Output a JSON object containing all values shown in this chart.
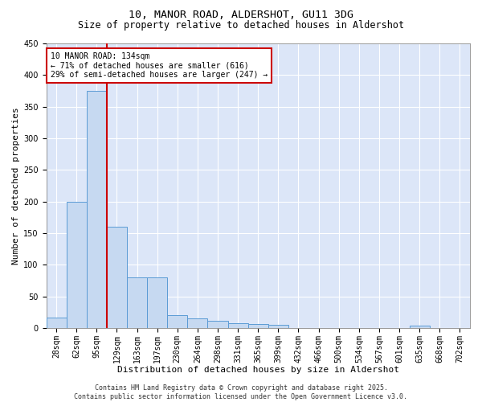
{
  "title_line1": "10, MANOR ROAD, ALDERSHOT, GU11 3DG",
  "title_line2": "Size of property relative to detached houses in Aldershot",
  "xlabel": "Distribution of detached houses by size in Aldershot",
  "ylabel": "Number of detached properties",
  "categories": [
    "28sqm",
    "62sqm",
    "95sqm",
    "129sqm",
    "163sqm",
    "197sqm",
    "230sqm",
    "264sqm",
    "298sqm",
    "331sqm",
    "365sqm",
    "399sqm",
    "432sqm",
    "466sqm",
    "500sqm",
    "534sqm",
    "567sqm",
    "601sqm",
    "635sqm",
    "668sqm",
    "702sqm"
  ],
  "values": [
    17,
    200,
    375,
    160,
    80,
    80,
    20,
    15,
    12,
    7,
    6,
    5,
    0,
    0,
    0,
    0,
    0,
    0,
    4,
    0,
    0
  ],
  "bar_color": "#c6d9f1",
  "bar_edge_color": "#5b9bd5",
  "red_line_index": 3,
  "annotation_text": "10 MANOR ROAD: 134sqm\n← 71% of detached houses are smaller (616)\n29% of semi-detached houses are larger (247) →",
  "annotation_box_color": "white",
  "annotation_box_edge_color": "#cc0000",
  "red_line_color": "#cc0000",
  "ylim": [
    0,
    450
  ],
  "yticks": [
    0,
    50,
    100,
    150,
    200,
    250,
    300,
    350,
    400,
    450
  ],
  "background_color": "#dce6f8",
  "grid_color": "white",
  "footer_line1": "Contains HM Land Registry data © Crown copyright and database right 2025.",
  "footer_line2": "Contains public sector information licensed under the Open Government Licence v3.0.",
  "title_fontsize": 9.5,
  "subtitle_fontsize": 8.5,
  "axis_label_fontsize": 8,
  "tick_fontsize": 7,
  "annotation_fontsize": 7,
  "footer_fontsize": 6
}
